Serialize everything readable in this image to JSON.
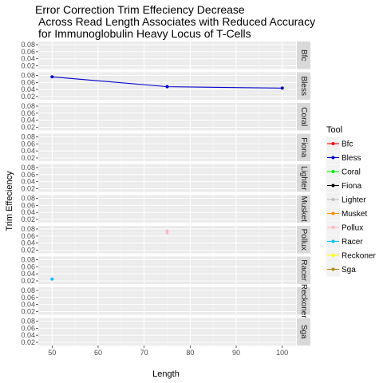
{
  "chart_data": {
    "type": "line",
    "title_lines": [
      "Error Correction Trim Effeciency Decrease",
      "Across Read Length Associates with Reduced Accuracy",
      "for Immunoglobulin Heavy Locus of T-Cells"
    ],
    "xlabel": "Length",
    "ylabel": "Trim Effeciency",
    "xlim": [
      47,
      103
    ],
    "ylim": [
      0.02,
      0.08
    ],
    "x_ticks": [
      50,
      60,
      70,
      80,
      90,
      100
    ],
    "y_ticks": [
      0.02,
      0.04,
      0.06,
      0.08
    ],
    "y_tick_labels": [
      "0.02",
      "0.04",
      "0.06",
      "0.08"
    ],
    "grid": true,
    "facets": [
      "Bfc",
      "Bless",
      "Coral",
      "Fiona",
      "Lighter",
      "Musket",
      "Pollux",
      "Racer",
      "Reckoner",
      "Sga"
    ],
    "legend": {
      "title": "Tool",
      "placement": "right",
      "entries": [
        {
          "name": "Bfc",
          "color": "#ff0000"
        },
        {
          "name": "Bless",
          "color": "#0000cd"
        },
        {
          "name": "Coral",
          "color": "#00ee00"
        },
        {
          "name": "Fiona",
          "color": "#000000"
        },
        {
          "name": "Lighter",
          "color": "#bebebe"
        },
        {
          "name": "Musket",
          "color": "#ff8c00"
        },
        {
          "name": "Pollux",
          "color": "#ffb6c1"
        },
        {
          "name": "Racer",
          "color": "#00bfff"
        },
        {
          "name": "Reckoner",
          "color": "#ffff00"
        },
        {
          "name": "Sga",
          "color": "#b8860b"
        }
      ]
    },
    "series": [
      {
        "tool": "Bless",
        "x": [
          50,
          75,
          100
        ],
        "y": [
          0.076,
          0.048,
          0.044
        ]
      },
      {
        "tool": "Pollux",
        "x": [
          75
        ],
        "y": [
          0.072
        ],
        "y_err": [
          0.005
        ]
      },
      {
        "tool": "Racer",
        "x": [
          50
        ],
        "y": [
          0.025
        ]
      }
    ]
  }
}
